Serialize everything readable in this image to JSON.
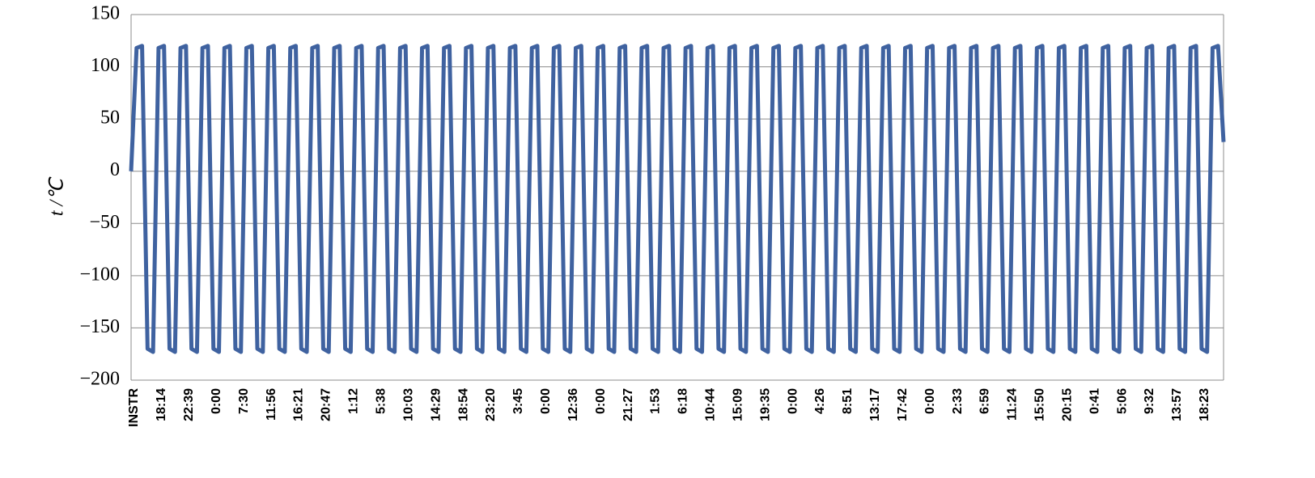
{
  "chart_data": {
    "type": "line",
    "y_label": "t /℃",
    "ylim": [
      -200,
      150
    ],
    "yticks": [
      {
        "value": -200,
        "label": "−200"
      },
      {
        "value": -150,
        "label": "−150"
      },
      {
        "value": -100,
        "label": "−100"
      },
      {
        "value": -50,
        "label": "−50"
      },
      0,
      50,
      100,
      150
    ],
    "grid": true,
    "categories": [
      "INSTR",
      null,
      null,
      null,
      null,
      "18:14",
      null,
      null,
      null,
      null,
      "22:39",
      null,
      null,
      null,
      null,
      "0:00",
      null,
      null,
      null,
      null,
      "7:30",
      null,
      null,
      null,
      null,
      "11:56",
      null,
      null,
      null,
      null,
      "16:21",
      null,
      null,
      null,
      null,
      "20:47",
      null,
      null,
      null,
      null,
      "1:12",
      null,
      null,
      null,
      null,
      "5:38",
      null,
      null,
      null,
      null,
      "10:03",
      null,
      null,
      null,
      null,
      "14:29",
      null,
      null,
      null,
      null,
      "18:54",
      null,
      null,
      null,
      null,
      "23:20",
      null,
      null,
      null,
      null,
      "3:45",
      null,
      null,
      null,
      null,
      "0:00",
      null,
      null,
      null,
      null,
      "12:36",
      null,
      null,
      null,
      null,
      "0:00",
      null,
      null,
      null,
      null,
      "21:27",
      null,
      null,
      null,
      null,
      "1:53",
      null,
      null,
      null,
      null,
      "6:18",
      null,
      null,
      null,
      null,
      "10:44",
      null,
      null,
      null,
      null,
      "15:09",
      null,
      null,
      null,
      null,
      "19:35",
      null,
      null,
      null,
      null,
      "0:00",
      null,
      null,
      null,
      null,
      "4:26",
      null,
      null,
      null,
      null,
      "8:51",
      null,
      null,
      null,
      null,
      "13:17",
      null,
      null,
      null,
      null,
      "17:42",
      null,
      null,
      null,
      null,
      "0:00",
      null,
      null,
      null,
      null,
      "2:33",
      null,
      null,
      null,
      null,
      "6:59",
      null,
      null,
      null,
      null,
      "11:24",
      null,
      null,
      null,
      null,
      "15:50",
      null,
      null,
      null,
      null,
      "20:15",
      null,
      null,
      null,
      null,
      "0:41",
      null,
      null,
      null,
      null,
      "5:06",
      null,
      null,
      null,
      null,
      "9:32",
      null,
      null,
      null,
      null,
      "13:57",
      null,
      null,
      null,
      null,
      "18:23",
      null,
      null,
      null,
      null
    ],
    "series": [
      {
        "color": "#3f62a0",
        "values": [
          0,
          118,
          120,
          -170,
          -173,
          118,
          120,
          -170,
          -173,
          118,
          120,
          -170,
          -173,
          118,
          120,
          -170,
          -173,
          118,
          120,
          -170,
          -173,
          118,
          120,
          -170,
          -173,
          118,
          120,
          -170,
          -173,
          118,
          120,
          -170,
          -173,
          118,
          120,
          -170,
          -173,
          118,
          120,
          -170,
          -173,
          118,
          120,
          -170,
          -173,
          118,
          120,
          -170,
          -173,
          118,
          120,
          -170,
          -173,
          118,
          120,
          -170,
          -173,
          118,
          120,
          -170,
          -173,
          118,
          120,
          -170,
          -173,
          118,
          120,
          -170,
          -173,
          118,
          120,
          -170,
          -173,
          118,
          120,
          -170,
          -173,
          118,
          120,
          -170,
          -173,
          118,
          120,
          -170,
          -173,
          118,
          120,
          -170,
          -173,
          118,
          120,
          -170,
          -173,
          118,
          120,
          -170,
          -173,
          118,
          120,
          -170,
          -173,
          118,
          120,
          -170,
          -173,
          118,
          120,
          -170,
          -173,
          118,
          120,
          -170,
          -173,
          118,
          120,
          -170,
          -173,
          118,
          120,
          -170,
          -173,
          118,
          120,
          -170,
          -173,
          118,
          120,
          -170,
          -173,
          118,
          120,
          -170,
          -173,
          118,
          120,
          -170,
          -173,
          118,
          120,
          -170,
          -173,
          118,
          120,
          -170,
          -173,
          118,
          120,
          -170,
          -173,
          118,
          120,
          -170,
          -173,
          118,
          120,
          -170,
          -173,
          118,
          120,
          -170,
          -173,
          118,
          120,
          -170,
          -173,
          118,
          120,
          -170,
          -173,
          118,
          120,
          -170,
          -173,
          118,
          120,
          -170,
          -173,
          118,
          120,
          -170,
          -173,
          118,
          120,
          -170,
          -173,
          118,
          120,
          -170,
          -173,
          118,
          120,
          -170,
          -173,
          118,
          120,
          -170,
          -173,
          118,
          120,
          28
        ]
      }
    ]
  }
}
